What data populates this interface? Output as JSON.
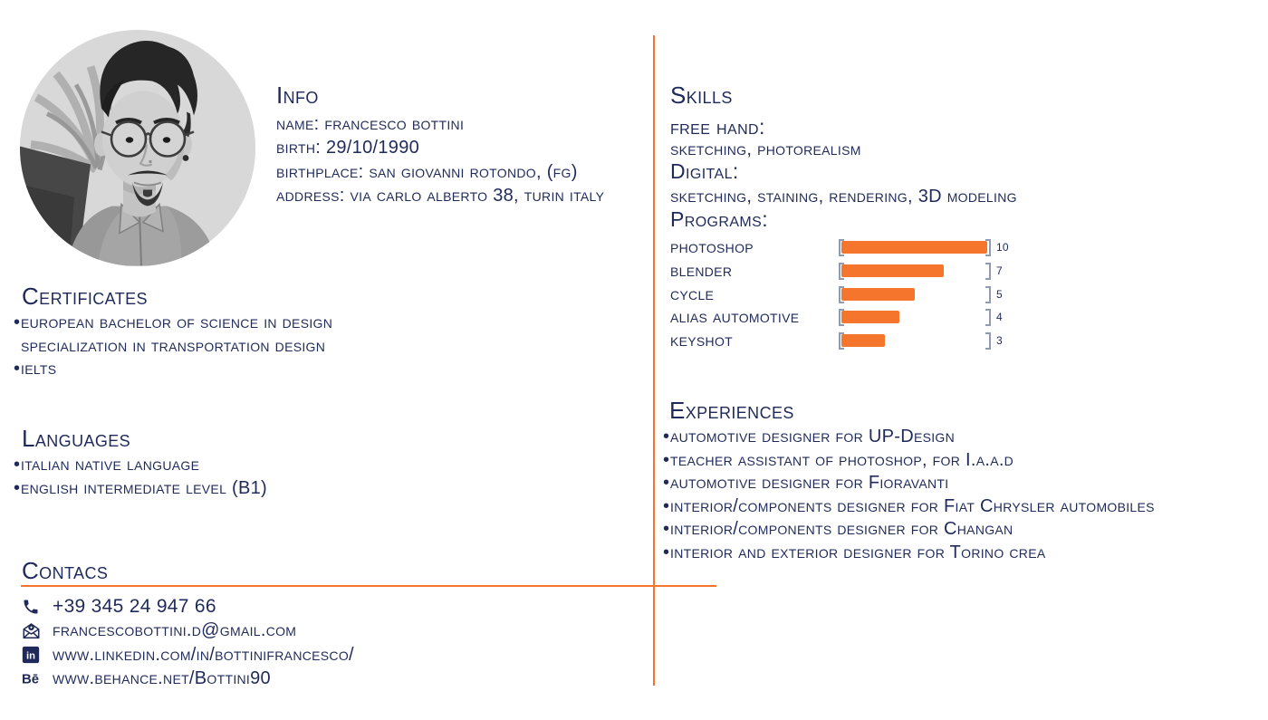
{
  "colors": {
    "text_navy": "#1f2a5a",
    "accent_orange": "#f5752c",
    "bracket_gray": "#8e9bb2",
    "photo_bg": "#d8d8d8"
  },
  "info": {
    "title": "Info",
    "lines": [
      "name: francesco bottini",
      "birth: 29/10/1990",
      "birthplace: san giovanni rotondo, (fg)",
      "address: via carlo alberto 38, turin italy"
    ]
  },
  "certificates": {
    "title": "Certificates",
    "items": [
      {
        "bullet": "•",
        "text": "european bachelor of science in design"
      },
      {
        "bullet": "",
        "text": "specialization in transportation design"
      },
      {
        "bullet": "•",
        "text": "ielts"
      }
    ]
  },
  "languages": {
    "title": "Languages",
    "items": [
      {
        "bullet": "•",
        "text": "italian native language"
      },
      {
        "bullet": "•",
        "text": "english intermediate level (B1)"
      }
    ]
  },
  "contacts": {
    "title": "Contacs",
    "items": [
      {
        "icon": "phone-icon",
        "text": "+39 345 24 947 66"
      },
      {
        "icon": "email-icon",
        "text": "francescobottini.d@gmail.com"
      },
      {
        "icon": "linkedin-icon",
        "text": "www.linkedin.com/in/bottinifrancesco/"
      },
      {
        "icon": "behance-icon",
        "text": "www.behance.net/Bottini90"
      }
    ]
  },
  "skills": {
    "title": "Skills",
    "free_hand_label": "free hand:",
    "free_hand_value": "sketching, photorealism",
    "digital_label": "Digital:",
    "digital_value": "sketching, staining, rendering, 3D modeling"
  },
  "chart_data": {
    "type": "bar",
    "orientation": "horizontal",
    "title": "Programs:",
    "categories": [
      "photoshop",
      "blender",
      "cycle",
      "alias automotive",
      "keyshot"
    ],
    "values": [
      10,
      7,
      5,
      4,
      3
    ],
    "value_labels": [
      "10",
      "7",
      "5",
      "4",
      "3"
    ],
    "xlim": [
      0,
      10
    ],
    "bar_color": "#f5752c",
    "bracket_color": "#8e9bb2",
    "legend": "none",
    "grid": false
  },
  "experiences": {
    "title": "Experiences",
    "items": [
      {
        "bullet": "•",
        "text": "automotive designer for UP-Design"
      },
      {
        "bullet": "•",
        "text": "teacher assistant of photoshop, for I.a.a.d"
      },
      {
        "bullet": "•",
        "text": "automotive designer for Fioravanti"
      },
      {
        "bullet": "•",
        "text": "interior/components designer for Fiat Chrysler automobiles"
      },
      {
        "bullet": "•",
        "text": "interior/components designer for Changan"
      },
      {
        "bullet": "•",
        "text": "interior and exterior designer for Torino crea"
      }
    ]
  }
}
